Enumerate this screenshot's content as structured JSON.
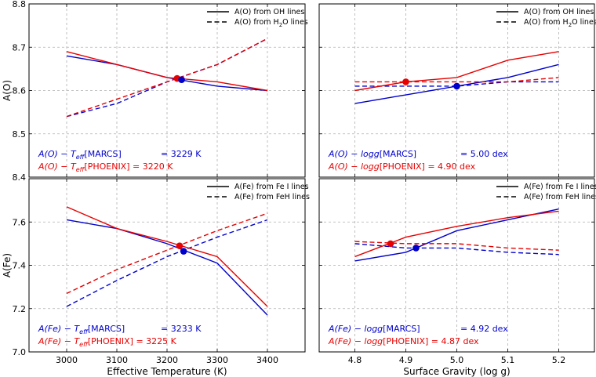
{
  "colors": {
    "marcs": "#0000cc",
    "phoenix": "#e60000"
  },
  "chart_data": [
    {
      "type": "line",
      "panel": "top-left",
      "ylabel": "A(O)",
      "xlabel": "",
      "xlim": [
        2925,
        3475
      ],
      "ylim": [
        8.4,
        8.8
      ],
      "xticks": [],
      "yticks": [
        "8.4",
        "8.5",
        "8.6",
        "8.7",
        "8.8"
      ],
      "ytick_vals": [
        8.4,
        8.5,
        8.6,
        8.7,
        8.8
      ],
      "grid": true,
      "legend": {
        "placement": "top-right",
        "entries": [
          {
            "label": "A(O) from OH lines",
            "style": "solid"
          },
          {
            "label": "A(O) from H",
            "sub": "2",
            "label2": "O lines",
            "style": "dashed"
          }
        ]
      },
      "series": [
        {
          "model": "marcs",
          "style": "solid",
          "x": [
            3000,
            3100,
            3200,
            3300,
            3400
          ],
          "y": [
            8.68,
            8.66,
            8.63,
            8.61,
            8.6
          ]
        },
        {
          "model": "marcs",
          "style": "dashed",
          "x": [
            3000,
            3100,
            3200,
            3300,
            3400
          ],
          "y": [
            8.54,
            8.57,
            8.62,
            8.66,
            8.72
          ]
        },
        {
          "model": "phoenix",
          "style": "solid",
          "x": [
            3000,
            3100,
            3200,
            3300,
            3400
          ],
          "y": [
            8.69,
            8.66,
            8.63,
            8.62,
            8.6
          ]
        },
        {
          "model": "phoenix",
          "style": "dashed",
          "x": [
            3000,
            3100,
            3200,
            3300,
            3400
          ],
          "y": [
            8.54,
            8.58,
            8.62,
            8.66,
            8.72
          ]
        }
      ],
      "points": [
        {
          "model": "phoenix",
          "x": 3220,
          "y": 8.628
        },
        {
          "model": "marcs",
          "x": 3229,
          "y": 8.625
        }
      ],
      "annotations": [
        {
          "model": "marcs",
          "prefix": "A(O) − T",
          "sub": "eff",
          "suffix": "[MARCS]",
          "value": "= 3229 K"
        },
        {
          "model": "phoenix",
          "prefix": "A(O) − T",
          "sub": "eff",
          "suffix": "[PHOENIX] = 3220 K",
          "value": ""
        }
      ]
    },
    {
      "type": "line",
      "panel": "top-right",
      "ylabel": "",
      "xlabel": "",
      "xlim": [
        4.73,
        5.27
      ],
      "ylim": [
        8.4,
        8.8
      ],
      "xticks": [],
      "yticks": [],
      "ytick_vals": [
        8.4,
        8.5,
        8.6,
        8.7,
        8.8
      ],
      "grid": true,
      "legend": {
        "placement": "top-right",
        "entries": [
          {
            "label": "A(O) from OH lines",
            "style": "solid"
          },
          {
            "label": "A(O) from H",
            "sub": "2",
            "label2": "O lines",
            "style": "dashed"
          }
        ]
      },
      "series": [
        {
          "model": "marcs",
          "style": "solid",
          "x": [
            4.8,
            4.9,
            5.0,
            5.1,
            5.2
          ],
          "y": [
            8.57,
            8.59,
            8.61,
            8.63,
            8.66
          ]
        },
        {
          "model": "marcs",
          "style": "dashed",
          "x": [
            4.8,
            4.9,
            5.0,
            5.1,
            5.2
          ],
          "y": [
            8.61,
            8.61,
            8.61,
            8.62,
            8.62
          ]
        },
        {
          "model": "phoenix",
          "style": "solid",
          "x": [
            4.8,
            4.9,
            5.0,
            5.1,
            5.2
          ],
          "y": [
            8.6,
            8.62,
            8.63,
            8.67,
            8.69
          ]
        },
        {
          "model": "phoenix",
          "style": "dashed",
          "x": [
            4.8,
            4.9,
            5.0,
            5.1,
            5.2
          ],
          "y": [
            8.62,
            8.62,
            8.62,
            8.62,
            8.63
          ]
        }
      ],
      "points": [
        {
          "model": "phoenix",
          "x": 4.9,
          "y": 8.62
        },
        {
          "model": "marcs",
          "x": 5.0,
          "y": 8.61
        }
      ],
      "annotations": [
        {
          "model": "marcs",
          "prefix": "A(O) − logg",
          "sub": "",
          "suffix": "[MARCS]",
          "value": "= 5.00 dex"
        },
        {
          "model": "phoenix",
          "prefix": "A(O) − logg",
          "sub": "",
          "suffix": "[PHOENIX] = 4.90 dex",
          "value": ""
        }
      ]
    },
    {
      "type": "line",
      "panel": "bottom-left",
      "ylabel": "A(Fe)",
      "xlabel": "Effective Temperature (K)",
      "xlim": [
        2925,
        3475
      ],
      "ylim": [
        7.0,
        7.8
      ],
      "xticks": [
        "3000",
        "3100",
        "3200",
        "3300",
        "3400"
      ],
      "xtick_vals": [
        3000,
        3100,
        3200,
        3300,
        3400
      ],
      "yticks": [
        "7.0",
        "7.2",
        "7.4",
        "7.6"
      ],
      "ytick_vals": [
        7.0,
        7.2,
        7.4,
        7.6
      ],
      "grid": true,
      "legend": {
        "placement": "top-right",
        "entries": [
          {
            "label": "A(Fe) from Fe I lines",
            "style": "solid"
          },
          {
            "label": "A(Fe) from FeH lines",
            "style": "dashed"
          }
        ]
      },
      "series": [
        {
          "model": "marcs",
          "style": "solid",
          "x": [
            3000,
            3100,
            3200,
            3300,
            3400
          ],
          "y": [
            7.61,
            7.57,
            7.5,
            7.41,
            7.17
          ]
        },
        {
          "model": "marcs",
          "style": "dashed",
          "x": [
            3000,
            3100,
            3200,
            3300,
            3400
          ],
          "y": [
            7.21,
            7.33,
            7.44,
            7.53,
            7.61
          ]
        },
        {
          "model": "phoenix",
          "style": "solid",
          "x": [
            3000,
            3100,
            3200,
            3300,
            3400
          ],
          "y": [
            7.67,
            7.57,
            7.51,
            7.44,
            7.21
          ]
        },
        {
          "model": "phoenix",
          "style": "dashed",
          "x": [
            3000,
            3100,
            3200,
            3300,
            3400
          ],
          "y": [
            7.27,
            7.38,
            7.47,
            7.56,
            7.64
          ]
        }
      ],
      "points": [
        {
          "model": "phoenix",
          "x": 3225,
          "y": 7.49
        },
        {
          "model": "marcs",
          "x": 3233,
          "y": 7.465
        }
      ],
      "annotations": [
        {
          "model": "marcs",
          "prefix": "A(Fe) − T",
          "sub": "eff",
          "suffix": "[MARCS]",
          "value": "= 3233 K"
        },
        {
          "model": "phoenix",
          "prefix": "A(Fe) − T",
          "sub": "eff",
          "suffix": "[PHOENIX] = 3225 K",
          "value": ""
        }
      ]
    },
    {
      "type": "line",
      "panel": "bottom-right",
      "ylabel": "",
      "xlabel": "Surface Gravity (log g)",
      "xlim": [
        4.73,
        5.27
      ],
      "ylim": [
        7.0,
        7.8
      ],
      "xticks": [
        "4.8",
        "4.9",
        "5.0",
        "5.1",
        "5.2"
      ],
      "xtick_vals": [
        4.8,
        4.9,
        5.0,
        5.1,
        5.2
      ],
      "yticks": [],
      "ytick_vals": [
        7.0,
        7.2,
        7.4,
        7.6
      ],
      "grid": true,
      "legend": {
        "placement": "top-right",
        "entries": [
          {
            "label": "A(Fe) from Fe I lines",
            "style": "solid"
          },
          {
            "label": "A(Fe) from FeH lines",
            "style": "dashed"
          }
        ]
      },
      "series": [
        {
          "model": "marcs",
          "style": "solid",
          "x": [
            4.8,
            4.9,
            5.0,
            5.1,
            5.2
          ],
          "y": [
            7.42,
            7.46,
            7.56,
            7.61,
            7.66
          ]
        },
        {
          "model": "marcs",
          "style": "dashed",
          "x": [
            4.8,
            4.9,
            5.0,
            5.1,
            5.2
          ],
          "y": [
            7.5,
            7.48,
            7.48,
            7.46,
            7.45
          ]
        },
        {
          "model": "phoenix",
          "style": "solid",
          "x": [
            4.8,
            4.9,
            5.0,
            5.1,
            5.2
          ],
          "y": [
            7.44,
            7.53,
            7.58,
            7.62,
            7.65
          ]
        },
        {
          "model": "phoenix",
          "style": "dashed",
          "x": [
            4.8,
            4.9,
            5.0,
            5.1,
            5.2
          ],
          "y": [
            7.51,
            7.5,
            7.5,
            7.48,
            7.47
          ]
        }
      ],
      "points": [
        {
          "model": "phoenix",
          "x": 4.87,
          "y": 7.5
        },
        {
          "model": "marcs",
          "x": 4.92,
          "y": 7.48
        }
      ],
      "annotations": [
        {
          "model": "marcs",
          "prefix": "A(Fe) − logg",
          "sub": "",
          "suffix": "[MARCS]",
          "value": "= 4.92 dex"
        },
        {
          "model": "phoenix",
          "prefix": "A(Fe) − logg",
          "sub": "",
          "suffix": "[PHOENIX] = 4.87 dex",
          "value": ""
        }
      ]
    }
  ]
}
